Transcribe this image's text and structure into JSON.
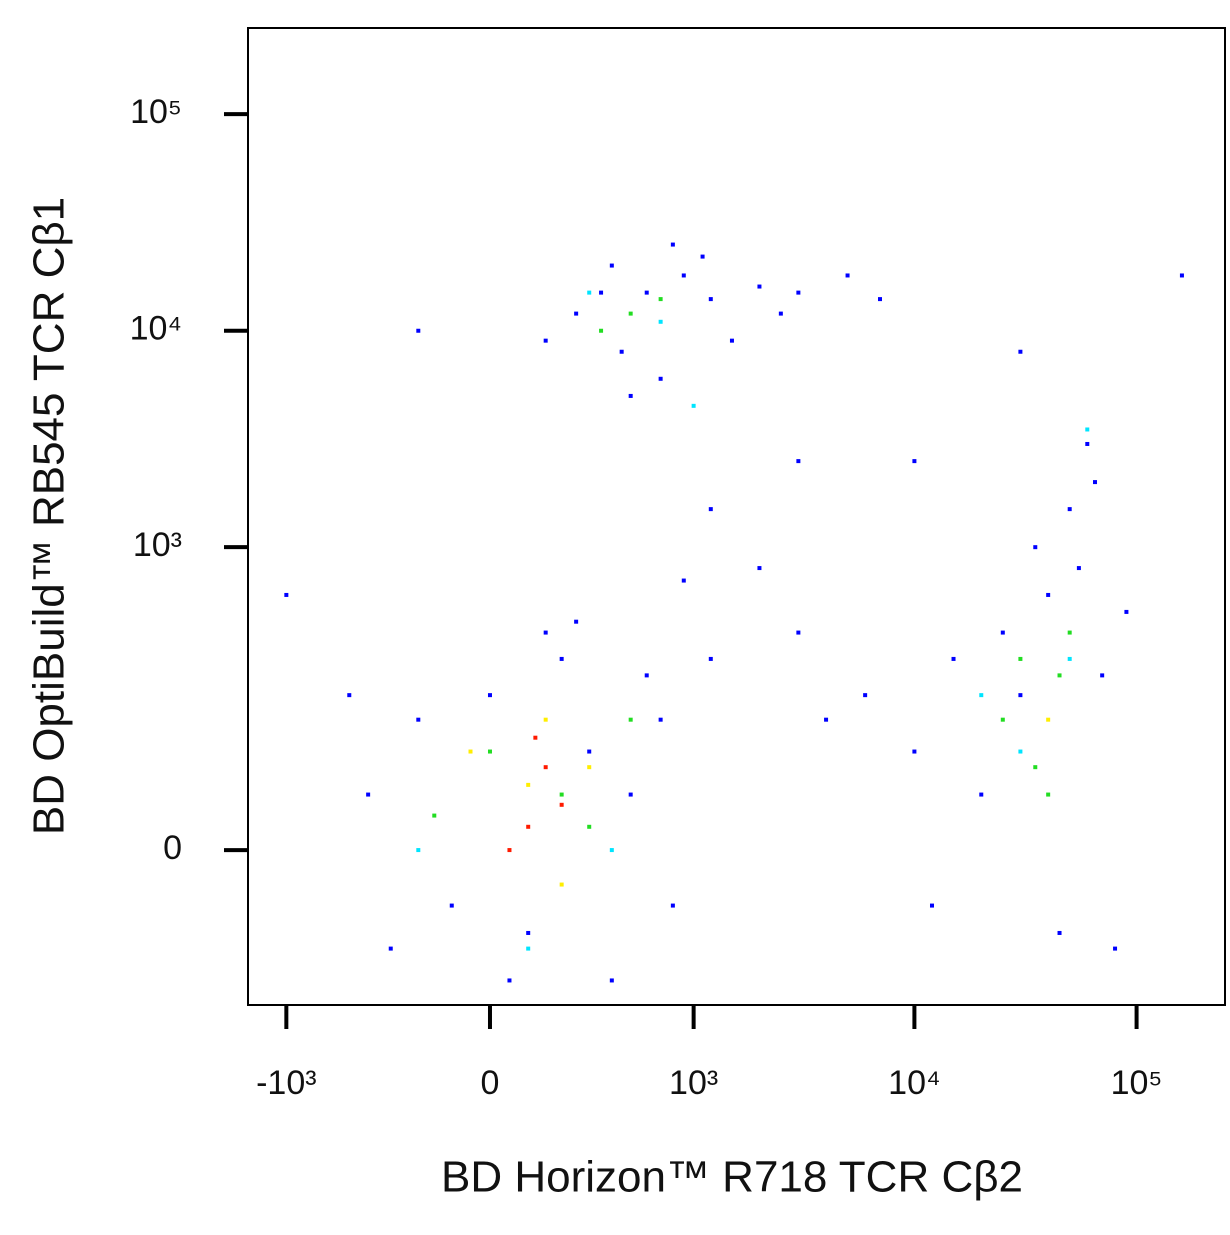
{
  "chart_data": {
    "type": "scatter",
    "x_label": "BD Horizon™ R718 TCR Cβ2",
    "y_label": "BD OptiBuild™ RB545 TCR Cβ1",
    "xscale": "biexponential",
    "yscale": "biexponential",
    "xlim": [
      -1500,
      250000
    ],
    "ylim": [
      -200,
      250000
    ],
    "xticks": [
      {
        "value": -1000,
        "label": "-10³"
      },
      0,
      {
        "value": 1000,
        "label": "10³"
      },
      {
        "value": 10000,
        "label": "10⁴"
      },
      {
        "value": 100000,
        "label": "10⁵"
      }
    ],
    "yticks": [
      0,
      {
        "value": 1000,
        "label": "10³"
      },
      {
        "value": 10000,
        "label": "10⁴"
      },
      {
        "value": 100000,
        "label": "10⁵"
      }
    ],
    "series": [
      {
        "color": "#0000ff",
        "x": [
          250,
          400,
          600,
          900,
          1200,
          2000,
          3000,
          700,
          450,
          150,
          1500,
          350,
          800,
          1100,
          500,
          2500,
          5000,
          -200,
          -400,
          -200,
          -100,
          0,
          100,
          200,
          300,
          500,
          700,
          -300,
          400,
          600,
          150,
          800,
          1200,
          -500,
          50,
          250,
          10000,
          15000,
          20000,
          30000,
          40000,
          50000,
          60000,
          70000,
          80000,
          45000,
          25000,
          35000,
          55000,
          6000,
          4000,
          3000,
          12000,
          65000,
          90000,
          1200,
          900,
          2000,
          10000,
          30000,
          160000,
          3000,
          -1000,
          7000
        ],
        "values": [
          12000,
          20000,
          15000,
          18000,
          14000,
          16000,
          15000,
          6000,
          8000,
          9000,
          9000,
          15000,
          25000,
          22000,
          5000,
          12000,
          18000,
          10000,
          50,
          150,
          -50,
          200,
          -80,
          300,
          100,
          50,
          150,
          -100,
          -150,
          250,
          400,
          -50,
          300,
          200,
          -150,
          450,
          100,
          300,
          50,
          200,
          600,
          1500,
          3000,
          250,
          -100,
          -80,
          400,
          1000,
          800,
          200,
          150,
          400,
          -50,
          2000,
          500,
          1500,
          700,
          800,
          2500,
          8000,
          18000,
          2500,
          600,
          14000
        ]
      },
      {
        "color": "#00e5ff",
        "x": [
          300,
          700,
          1000,
          100,
          400,
          30000,
          50000,
          -200,
          60000,
          20000
        ],
        "values": [
          15000,
          11000,
          4500,
          -100,
          0,
          100,
          300,
          0,
          3500,
          200
        ]
      },
      {
        "color": "#22dd22",
        "x": [
          500,
          700,
          350,
          200,
          0,
          300,
          500,
          -150,
          25000,
          35000,
          45000,
          40000,
          30000,
          50000
        ],
        "values": [
          12000,
          14000,
          10000,
          50,
          100,
          20,
          150,
          30,
          150,
          80,
          250,
          50,
          300,
          400
        ]
      },
      {
        "color": "#ffee00",
        "x": [
          100,
          200,
          -50,
          300,
          150,
          40000
        ],
        "values": [
          60,
          -30,
          100,
          80,
          150,
          150
        ]
      },
      {
        "color": "#ff1a00",
        "x": [
          100,
          150,
          200,
          50,
          120
        ],
        "values": [
          20,
          80,
          40,
          0,
          120
        ]
      }
    ]
  }
}
